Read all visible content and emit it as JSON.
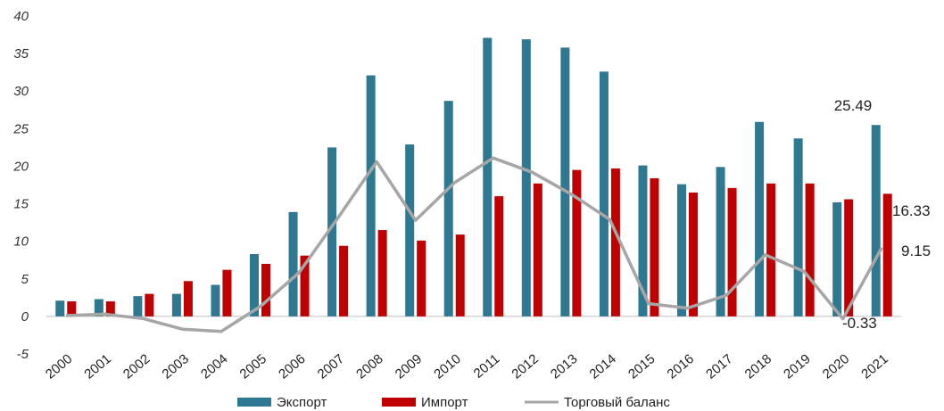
{
  "chart_data": {
    "type": "bar",
    "categories": [
      "2000",
      "2001",
      "2002",
      "2003",
      "2004",
      "2005",
      "2006",
      "2007",
      "2008",
      "2009",
      "2010",
      "2011",
      "2012",
      "2013",
      "2014",
      "2015",
      "2016",
      "2017",
      "2018",
      "2019",
      "2020",
      "2021"
    ],
    "series": [
      {
        "name": "Экспорт",
        "kind": "bar",
        "color": "#2e7891",
        "values": [
          2.1,
          2.3,
          2.7,
          3.0,
          4.2,
          8.3,
          13.9,
          22.5,
          32.1,
          22.9,
          28.7,
          37.1,
          36.9,
          35.8,
          32.6,
          20.1,
          17.6,
          19.9,
          25.9,
          23.7,
          15.2,
          25.49
        ]
      },
      {
        "name": "Импорт",
        "kind": "bar",
        "color": "#c00000",
        "values": [
          2.0,
          2.0,
          3.0,
          4.7,
          6.2,
          7.0,
          8.1,
          9.4,
          11.5,
          10.1,
          10.9,
          16.0,
          17.7,
          19.5,
          19.7,
          18.4,
          16.5,
          17.1,
          17.7,
          17.7,
          15.6,
          16.33
        ]
      },
      {
        "name": "Торговый баланс",
        "kind": "line",
        "color": "#a6a6a6",
        "values": [
          0.1,
          0.3,
          -0.3,
          -1.7,
          -2.0,
          1.3,
          5.8,
          13.1,
          20.6,
          12.8,
          17.8,
          21.1,
          19.2,
          16.3,
          12.9,
          1.7,
          1.1,
          2.8,
          8.2,
          6.0,
          -0.33,
          9.15
        ]
      }
    ],
    "annotations": [
      "25.49",
      "16.33",
      "9.15",
      "-0.33"
    ],
    "ylim": [
      -5,
      40
    ],
    "yticks": [
      "-5",
      "0",
      "5",
      "10",
      "15",
      "20",
      "25",
      "30",
      "35",
      "40"
    ],
    "grid": false,
    "legend": "bottom"
  }
}
